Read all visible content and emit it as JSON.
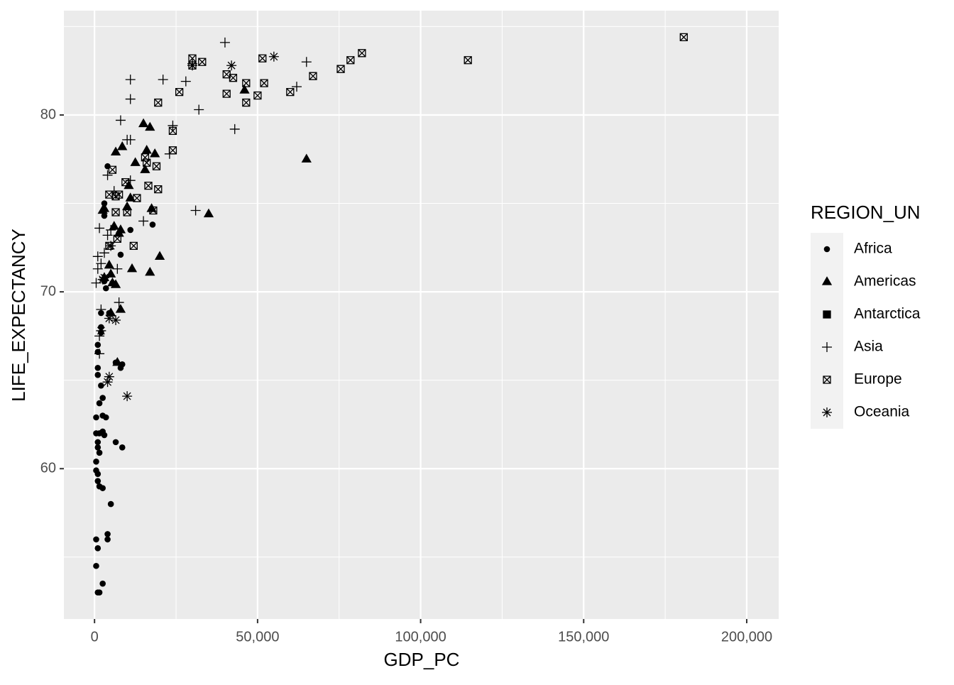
{
  "chart_data": {
    "type": "scatter",
    "x_label": "GDP_PC",
    "y_label": "LIFE_EXPECTANCY",
    "legend_title": "REGION_UN",
    "legend_position": "right",
    "grid": true,
    "xlim": [
      -9400,
      209800
    ],
    "ylim": [
      51.5,
      85.9
    ],
    "xticks": [
      {
        "value": 0,
        "label": "0"
      },
      {
        "value": 50000,
        "label": "50,000"
      },
      {
        "value": 100000,
        "label": "100,000"
      },
      {
        "value": 150000,
        "label": "150,000"
      },
      {
        "value": 200000,
        "label": "200,000"
      }
    ],
    "yticks": [
      60,
      70,
      80
    ],
    "x_minor_ticks": [
      25000,
      75000,
      125000,
      175000
    ],
    "y_minor_ticks": [
      55,
      65,
      75,
      85
    ],
    "series": [
      {
        "name": "Africa",
        "shape": "circle",
        "color": "#000000",
        "x": [
          4000,
          3000,
          3000,
          17800,
          11000,
          8000,
          3500,
          3000,
          2000,
          2000,
          1000,
          1000,
          1000,
          1000,
          2000,
          2500,
          1500,
          500,
          2500,
          3500,
          500,
          1500,
          2500,
          3000,
          1000,
          1000,
          1500,
          6500,
          8500,
          500,
          500,
          1000,
          1000,
          1500,
          2500,
          5000,
          4000,
          4000,
          500,
          1000,
          500,
          2500,
          1000,
          1500,
          8500,
          8000,
          6500,
          4500,
          2000,
          5500
        ],
        "values": [
          77.1,
          75,
          74.3,
          73.8,
          73.5,
          72.1,
          70.2,
          70.6,
          68.8,
          68,
          67,
          66.6,
          65.7,
          65.3,
          64.7,
          64,
          63.7,
          62.9,
          63,
          62.9,
          62,
          62,
          62.1,
          61.9,
          61.5,
          61.2,
          60.9,
          61.5,
          61.2,
          60.4,
          59.9,
          59.7,
          59.3,
          59,
          58.9,
          58,
          56.3,
          56,
          56,
          55.5,
          54.5,
          53.5,
          53,
          53,
          65.9,
          65.7,
          66,
          68.8,
          67.7,
          70.5
        ]
      },
      {
        "name": "Americas",
        "shape": "triangle",
        "color": "#000000",
        "x": [
          15000,
          17000,
          6500,
          8500,
          18500,
          16000,
          15500,
          12500,
          10500,
          11000,
          17500,
          10000,
          2500,
          3000,
          6000,
          7500,
          8000,
          4500,
          5000,
          5500,
          6500,
          3000,
          11500,
          17000,
          20000,
          8000,
          5000,
          7000,
          35000,
          65000,
          46000
        ],
        "values": [
          79.5,
          79.3,
          77.9,
          78.2,
          77.8,
          78,
          76.9,
          77.3,
          76,
          75.3,
          74.7,
          74.8,
          74.6,
          74.7,
          73.7,
          73.3,
          73.5,
          71.5,
          71,
          70.5,
          70.4,
          70.8,
          71.3,
          71.1,
          72,
          69,
          68.8,
          66,
          74.4,
          77.5,
          81.4
        ]
      },
      {
        "name": "Antarctica",
        "shape": "square",
        "color": "#000000",
        "x": [],
        "values": []
      },
      {
        "name": "Asia",
        "shape": "plus",
        "color": "#000000",
        "x": [
          40000,
          65000,
          30000,
          11000,
          21000,
          28000,
          62000,
          11000,
          32000,
          8000,
          24000,
          43000,
          10000,
          11000,
          23000,
          4000,
          11000,
          31000,
          15000,
          1500,
          5000,
          4000,
          1000,
          2000,
          3000,
          1000,
          7000,
          500,
          2000,
          7500,
          1500,
          1500,
          6000
        ],
        "values": [
          84.1,
          83,
          82.9,
          82,
          82,
          81.9,
          81.6,
          80.9,
          80.3,
          79.7,
          79.4,
          79.2,
          78.6,
          78.6,
          77.8,
          76.6,
          76.3,
          74.6,
          74,
          73.6,
          73.5,
          73.2,
          72,
          71.6,
          72.2,
          71.3,
          71.3,
          70.5,
          69,
          69.4,
          67.5,
          66.5,
          75.7
        ]
      },
      {
        "name": "Europe",
        "shape": "boxed-x",
        "color": "#000000",
        "x": [
          180700,
          114500,
          82000,
          78500,
          75500,
          67000,
          60000,
          52000,
          51500,
          50000,
          46500,
          46500,
          42500,
          40500,
          40500,
          33000,
          30000,
          30000,
          26000,
          19500,
          24000,
          24000,
          19000,
          15500,
          16000,
          16500,
          19500,
          9500,
          5500,
          4500,
          7500,
          13000,
          6500,
          6500,
          10000,
          18000,
          12000,
          4500,
          7000
        ],
        "values": [
          84.4,
          83.1,
          83.5,
          83.1,
          82.6,
          82.2,
          81.3,
          81.8,
          83.2,
          81.1,
          81.8,
          80.7,
          82.1,
          82.3,
          81.2,
          83,
          83.2,
          82.8,
          81.3,
          80.7,
          79.1,
          78,
          77.1,
          77.6,
          77.3,
          76,
          75.8,
          76.2,
          76.9,
          75.5,
          75.5,
          75.3,
          75.4,
          74.5,
          74.5,
          74.6,
          72.6,
          72.6,
          73
        ]
      },
      {
        "name": "Oceania",
        "shape": "asterisk",
        "color": "#000000",
        "x": [
          55000,
          42000,
          30000,
          10000,
          4500,
          4000,
          4500,
          6500,
          3000,
          5000,
          2500,
          2000
        ],
        "values": [
          83.3,
          82.8,
          82.8,
          64.1,
          65.2,
          64.9,
          68.5,
          68.4,
          70.8,
          72.6,
          70.7,
          67.8
        ]
      }
    ]
  }
}
